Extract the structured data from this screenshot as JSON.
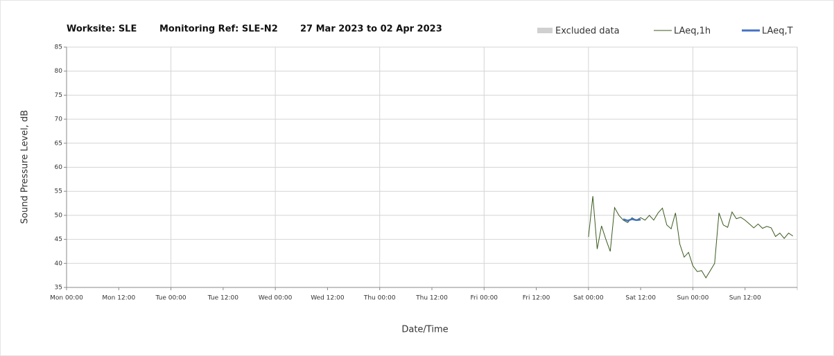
{
  "chart_data": {
    "type": "line",
    "title": [
      "Worksite: SLE",
      "Monitoring Ref: SLE-N2",
      "27 Mar 2023 to 02 Apr 2023"
    ],
    "xlabel": "Date/Time",
    "ylabel": "Sound Pressure Level, dB",
    "xlim": [
      0,
      168
    ],
    "xticks": [
      {
        "value": 0,
        "label": "Mon 00:00"
      },
      {
        "value": 12,
        "label": "Mon 12:00"
      },
      {
        "value": 24,
        "label": "Tue 00:00"
      },
      {
        "value": 36,
        "label": "Tue 12:00"
      },
      {
        "value": 48,
        "label": "Wed 00:00"
      },
      {
        "value": 60,
        "label": "Wed 12:00"
      },
      {
        "value": 72,
        "label": "Thu 00:00"
      },
      {
        "value": 84,
        "label": "Thu 12:00"
      },
      {
        "value": 96,
        "label": "Fri 00:00"
      },
      {
        "value": 108,
        "label": "Fri 12:00"
      },
      {
        "value": 120,
        "label": "Sat 00:00"
      },
      {
        "value": 132,
        "label": "Sat 12:00"
      },
      {
        "value": 144,
        "label": "Sun 00:00"
      },
      {
        "value": 156,
        "label": "Sun 12:00"
      }
    ],
    "ylim": [
      35,
      85
    ],
    "yticks": [
      35,
      40,
      45,
      50,
      55,
      60,
      65,
      70,
      75,
      80,
      85
    ],
    "grid": true,
    "series": [
      {
        "name": "Excluded data",
        "color": "#d0d0d0",
        "x": [],
        "values": []
      },
      {
        "name": "LAeq,1h",
        "color": "#3a5a1e",
        "x": [
          120,
          121,
          122,
          123,
          124,
          125,
          126,
          127,
          128,
          129,
          130,
          131,
          132,
          133,
          134,
          135,
          136,
          137,
          138,
          139,
          140,
          141,
          142,
          143,
          144,
          145,
          146,
          147,
          148,
          149,
          150,
          151,
          152,
          153,
          154,
          155,
          156,
          157,
          158,
          159,
          160,
          161,
          162,
          163,
          164,
          165,
          166,
          167
        ],
        "values": [
          45.5,
          54,
          43,
          47.8,
          45,
          42.5,
          51.6,
          50,
          49,
          48.5,
          49.5,
          49,
          49.5,
          49,
          50,
          49,
          50.5,
          51.5,
          48,
          47.2,
          50.5,
          44,
          41.3,
          42.3,
          39.5,
          38.3,
          38.5,
          37,
          38.5,
          40,
          50.5,
          48,
          47.5,
          50.7,
          49.3,
          49.6,
          49,
          48.2,
          47.4,
          48.2,
          47.3,
          47.7,
          47.4,
          45.6,
          46.3,
          45.2,
          46.3,
          45.7
        ]
      },
      {
        "name": "LAeq,T",
        "color": "#4472c4",
        "x": [
          128,
          129,
          130,
          131,
          132
        ],
        "values": [
          49.2,
          48.9,
          49.2,
          49,
          49.1
        ]
      }
    ]
  }
}
